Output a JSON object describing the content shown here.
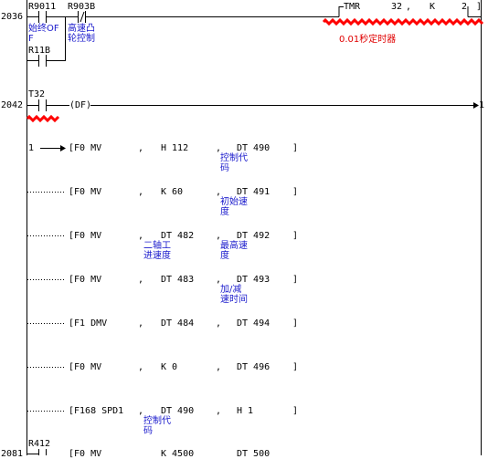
{
  "rungs": [
    {
      "step": "2036",
      "contacts": [
        {
          "device": "R9011",
          "comment": "始终OF\nF"
        },
        {
          "device": "R903B",
          "comment": "高速凸\n轮控制"
        },
        {
          "device": "R11B",
          "comment": ""
        }
      ],
      "coil": {
        "instr": "TMR",
        "arg1": "32",
        "sep": ",",
        "arg2": "K",
        "arg3": "2",
        "bracket": "]"
      },
      "coil_comment": "0.01秒定时器"
    },
    {
      "step": "2042",
      "contact": {
        "device": "T32"
      },
      "pulse": "(DF)",
      "arrow_target": "1"
    }
  ],
  "continuation_marker": "1",
  "instructions": [
    {
      "op": "[F0 MV",
      "a": "H 112",
      "b": "DT 490",
      "a_cmt": "",
      "b_cmt": "控制代\n码"
    },
    {
      "op": "[F0 MV",
      "a": "K 60",
      "b": "DT 491",
      "a_cmt": "",
      "b_cmt": "初始速\n度"
    },
    {
      "op": "[F0 MV",
      "a": "DT 482",
      "b": "DT 492",
      "a_cmt": "二轴工\n进速度",
      "b_cmt": "最高速\n度"
    },
    {
      "op": "[F0 MV",
      "a": "DT 483",
      "b": "DT 493",
      "a_cmt": "",
      "b_cmt": "加/减\n速时间"
    },
    {
      "op": "[F1 DMV",
      "a": "DT 484",
      "b": "DT 494",
      "a_cmt": "",
      "b_cmt": ""
    },
    {
      "op": "[F0 MV",
      "a": "K 0",
      "b": "DT 496",
      "a_cmt": "",
      "b_cmt": ""
    },
    {
      "op": "[F168 SPD1",
      "a": "DT 490",
      "b": "H 1",
      "a_cmt": "控制代\n码",
      "b_cmt": ""
    }
  ],
  "separator": ",",
  "close_bracket": "]",
  "bottom": {
    "step": "2081",
    "contact": "R412",
    "op": "[F0 MV",
    "a": "K 4500",
    "b": "DT 500"
  }
}
